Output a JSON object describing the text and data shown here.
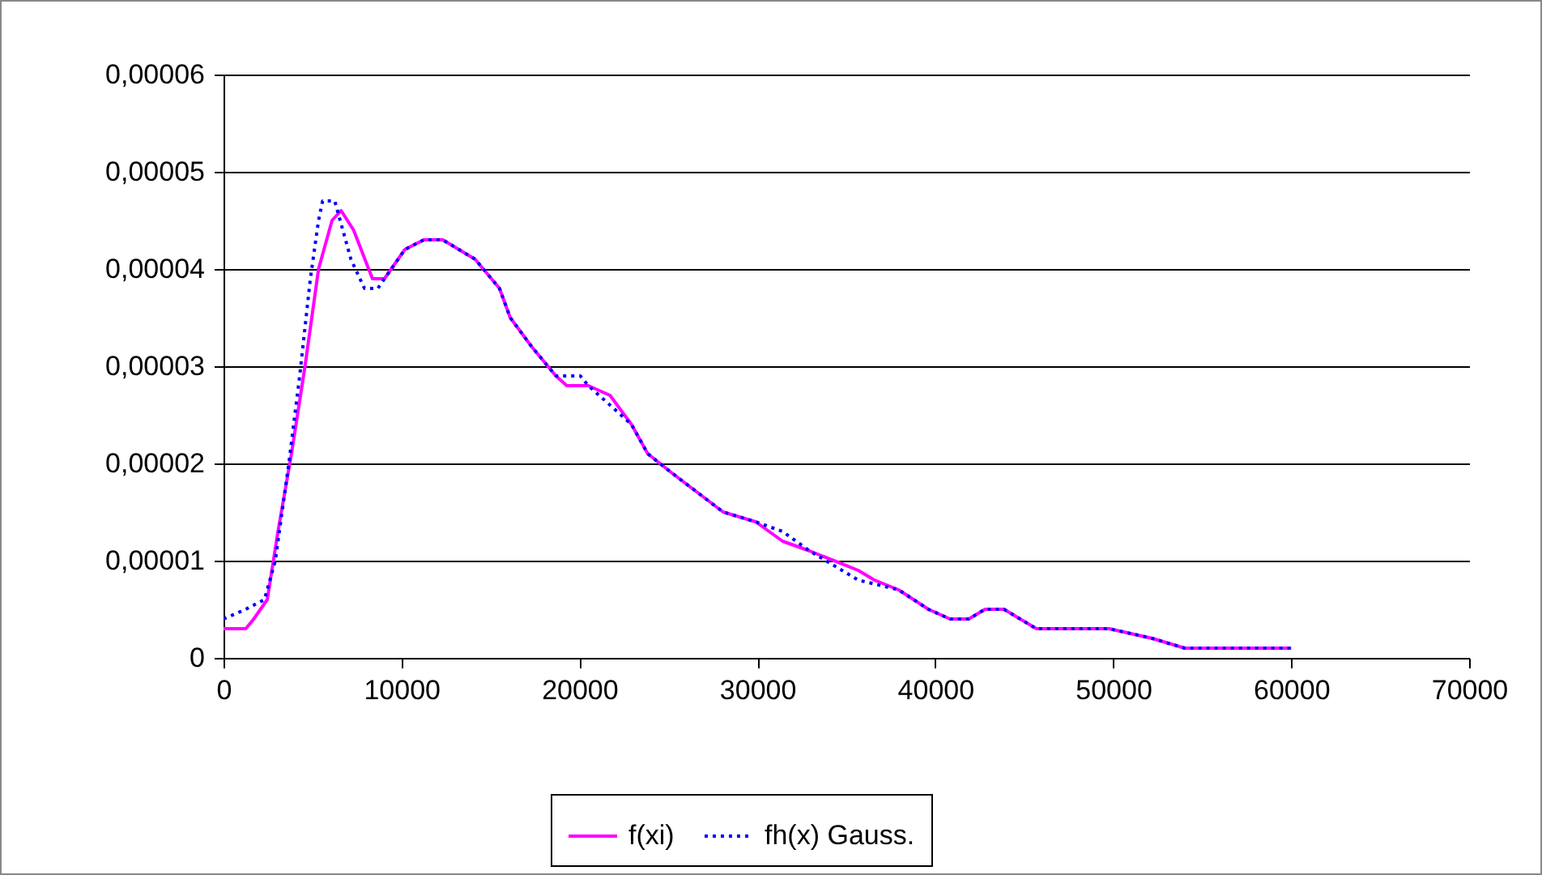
{
  "chart_data": {
    "type": "line",
    "xlim": [
      0,
      70000
    ],
    "xticks": [
      0,
      10000,
      20000,
      30000,
      40000,
      50000,
      60000,
      70000
    ],
    "ylim": [
      0,
      6e-05
    ],
    "yticks": [
      {
        "value": 0,
        "label": "0"
      },
      {
        "value": 1e-05,
        "label": "0,00001"
      },
      {
        "value": 2e-05,
        "label": "0,00002"
      },
      {
        "value": 3e-05,
        "label": "0,00003"
      },
      {
        "value": 4e-05,
        "label": "0,00004"
      },
      {
        "value": 5e-05,
        "label": "0,00005"
      },
      {
        "value": 6e-05,
        "label": "0,00006"
      }
    ],
    "grid": "y",
    "legend": "bottom",
    "marker": "none",
    "series": [
      {
        "name": "f(xi)",
        "color": "#ff00ff",
        "line_style": "solid",
        "x": [
          0,
          1250,
          1700,
          2460,
          3060,
          3820,
          4580,
          5340,
          6100,
          6610,
          7310,
          8370,
          9040,
          10190,
          11260,
          12320,
          14140,
          15510,
          16110,
          17320,
          18680,
          19290,
          20500,
          21720,
          22930,
          23840,
          25210,
          28080,
          29900,
          31420,
          32940,
          35670,
          36580,
          37940,
          39610,
          40830,
          41880,
          42800,
          43860,
          45680,
          49770,
          52200,
          54020,
          54780,
          55840,
          57660,
          59330,
          60000
        ],
        "values": [
          3e-06,
          3e-06,
          4e-06,
          6e-06,
          1.3e-05,
          2.1e-05,
          3e-05,
          4e-05,
          4.5e-05,
          4.6e-05,
          4.4e-05,
          3.9e-05,
          3.9e-05,
          4.2e-05,
          4.3e-05,
          4.3e-05,
          4.1e-05,
          3.8e-05,
          3.5e-05,
          3.2e-05,
          2.9e-05,
          2.8e-05,
          2.8e-05,
          2.7e-05,
          2.4e-05,
          2.1e-05,
          1.9e-05,
          1.5e-05,
          1.4e-05,
          1.2e-05,
          1.1e-05,
          9e-06,
          8e-06,
          7e-06,
          5e-06,
          4e-06,
          4e-06,
          5e-06,
          5e-06,
          3e-06,
          3e-06,
          2e-06,
          1e-06,
          1e-06,
          1e-06,
          1e-06,
          1e-06,
          1e-06
        ]
      },
      {
        "name": "fh(x) Gauss.",
        "color": "#0000ff",
        "line_style": "dotted",
        "x": [
          0,
          1250,
          2300,
          2910,
          3670,
          4280,
          4880,
          5340,
          5570,
          6250,
          7160,
          7920,
          8670,
          10190,
          11260,
          12320,
          14140,
          15510,
          16110,
          17320,
          18680,
          20050,
          20500,
          21720,
          22930,
          23840,
          25210,
          28080,
          29900,
          31420,
          32940,
          35670,
          37940,
          39610,
          40830,
          41880,
          42800,
          43860,
          45680,
          47500,
          49770,
          52200,
          54020,
          55840,
          57660,
          59330,
          60000
        ],
        "values": [
          4e-06,
          5e-06,
          6e-06,
          1e-05,
          2e-05,
          2.9e-05,
          3.9e-05,
          4.5e-05,
          4.7e-05,
          4.7e-05,
          4.1e-05,
          3.8e-05,
          3.8e-05,
          4.2e-05,
          4.3e-05,
          4.3e-05,
          4.1e-05,
          3.8e-05,
          3.5e-05,
          3.2e-05,
          2.9e-05,
          2.9e-05,
          2.8e-05,
          2.6e-05,
          2.4e-05,
          2.1e-05,
          1.9e-05,
          1.5e-05,
          1.4e-05,
          1.3e-05,
          1.1e-05,
          8e-06,
          7e-06,
          5e-06,
          4e-06,
          4e-06,
          5e-06,
          5e-06,
          3e-06,
          3e-06,
          3e-06,
          2e-06,
          1e-06,
          1e-06,
          1e-06,
          1e-06,
          1e-06
        ]
      }
    ]
  }
}
